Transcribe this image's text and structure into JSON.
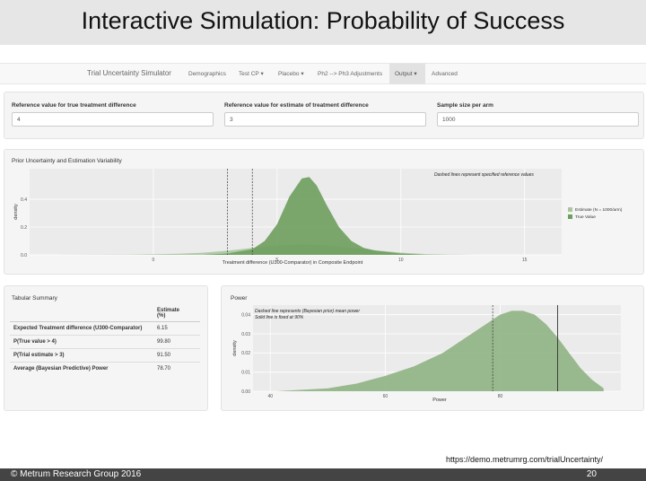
{
  "slide": {
    "title": "Interactive Simulation: Probability of Success",
    "url": "https://demo.metrumrg.com/trialUncertainty/",
    "copyright": "© Metrum Research Group 2016",
    "page_number": "20"
  },
  "navbar": {
    "brand": "Trial Uncertainty Simulator",
    "items": [
      {
        "label": "Demographics",
        "active": false
      },
      {
        "label": "Test CP",
        "active": false,
        "dropdown": true
      },
      {
        "label": "Placebo",
        "active": false,
        "dropdown": true
      },
      {
        "label": "Ph2 --> Ph3 Adjustments",
        "active": false
      },
      {
        "label": "Output",
        "active": true,
        "dropdown": true
      },
      {
        "label": "Advanced",
        "active": false
      }
    ],
    "caret": "▾"
  },
  "inputs": {
    "true_diff": {
      "label": "Reference value for true treatment difference",
      "value": "4"
    },
    "est_diff": {
      "label": "Reference value for estimate of treatment difference",
      "value": "3"
    },
    "sample_size": {
      "label": "Sample size per arm",
      "value": "1000"
    }
  },
  "prior_panel": {
    "title": "Prior Uncertainty and Estimation Variability"
  },
  "summary": {
    "title": "Tabular Summary",
    "header_line1": "Estimate",
    "header_line2": "(%)",
    "rows": [
      {
        "label": "Expected Treatment difference (U300-Comparator)",
        "value": "6.15"
      },
      {
        "label": "P(True value > 4)",
        "value": "99.80"
      },
      {
        "label": "P(Trial estimate > 3)",
        "value": "91.50"
      },
      {
        "label": "Average (Bayesian Predictive) Power",
        "value": "78.70"
      }
    ]
  },
  "power_panel": {
    "title": "Power"
  },
  "chart_data": [
    {
      "type": "area",
      "title": "",
      "xlabel": "Treatment difference (U300-Comparator) in Composite Endpoint",
      "ylabel": "density",
      "xlim": [
        -5,
        16.5
      ],
      "ylim": [
        0,
        0.62
      ],
      "xticks": [
        0,
        5,
        10,
        15
      ],
      "yticks": [
        0.0,
        0.2,
        0.4
      ],
      "annotation": "Dashed lines represent specified reference values",
      "reference_lines": [
        3,
        4
      ],
      "legend_position": "right",
      "series": [
        {
          "name": "Estimate (N = 1000/arm)",
          "color": "#a9c79f",
          "x": [
            -4,
            -1,
            0,
            1,
            2,
            3,
            4,
            5,
            6,
            7,
            8,
            9,
            10,
            11,
            12,
            13,
            16
          ],
          "y": [
            0,
            0.002,
            0.004,
            0.008,
            0.015,
            0.03,
            0.05,
            0.068,
            0.075,
            0.068,
            0.052,
            0.032,
            0.016,
            0.006,
            0.002,
            0,
            0
          ]
        },
        {
          "name": "True Value",
          "color": "#6e9f5e",
          "x": [
            2,
            3,
            4,
            4.5,
            5,
            5.5,
            6,
            6.3,
            6.6,
            7,
            7.5,
            8,
            8.5,
            9,
            10,
            11
          ],
          "y": [
            0,
            0.01,
            0.04,
            0.1,
            0.22,
            0.42,
            0.55,
            0.56,
            0.5,
            0.36,
            0.2,
            0.1,
            0.05,
            0.03,
            0.01,
            0
          ]
        }
      ]
    },
    {
      "type": "area",
      "title": "",
      "xlabel": "Power",
      "ylabel": "density",
      "xlim": [
        37,
        101
      ],
      "ylim": [
        0,
        0.045
      ],
      "xticks": [
        40,
        60,
        80
      ],
      "yticks": [
        0.0,
        0.01,
        0.02,
        0.03,
        0.04
      ],
      "annotation_line1": "Dashed line represents (Bayesian prior) mean power",
      "annotation_line2": "Solid line is fixed at 90%",
      "dashed_line": 78.7,
      "solid_line": 90,
      "series": [
        {
          "name": "",
          "color": "#8fb383",
          "x": [
            41,
            50,
            55,
            60,
            65,
            70,
            75,
            78,
            80,
            82,
            84,
            86,
            88,
            90,
            92,
            94,
            96,
            98
          ],
          "y": [
            0,
            0.0015,
            0.004,
            0.008,
            0.013,
            0.02,
            0.03,
            0.036,
            0.04,
            0.042,
            0.042,
            0.04,
            0.035,
            0.028,
            0.02,
            0.012,
            0.006,
            0.0015
          ]
        }
      ]
    }
  ]
}
